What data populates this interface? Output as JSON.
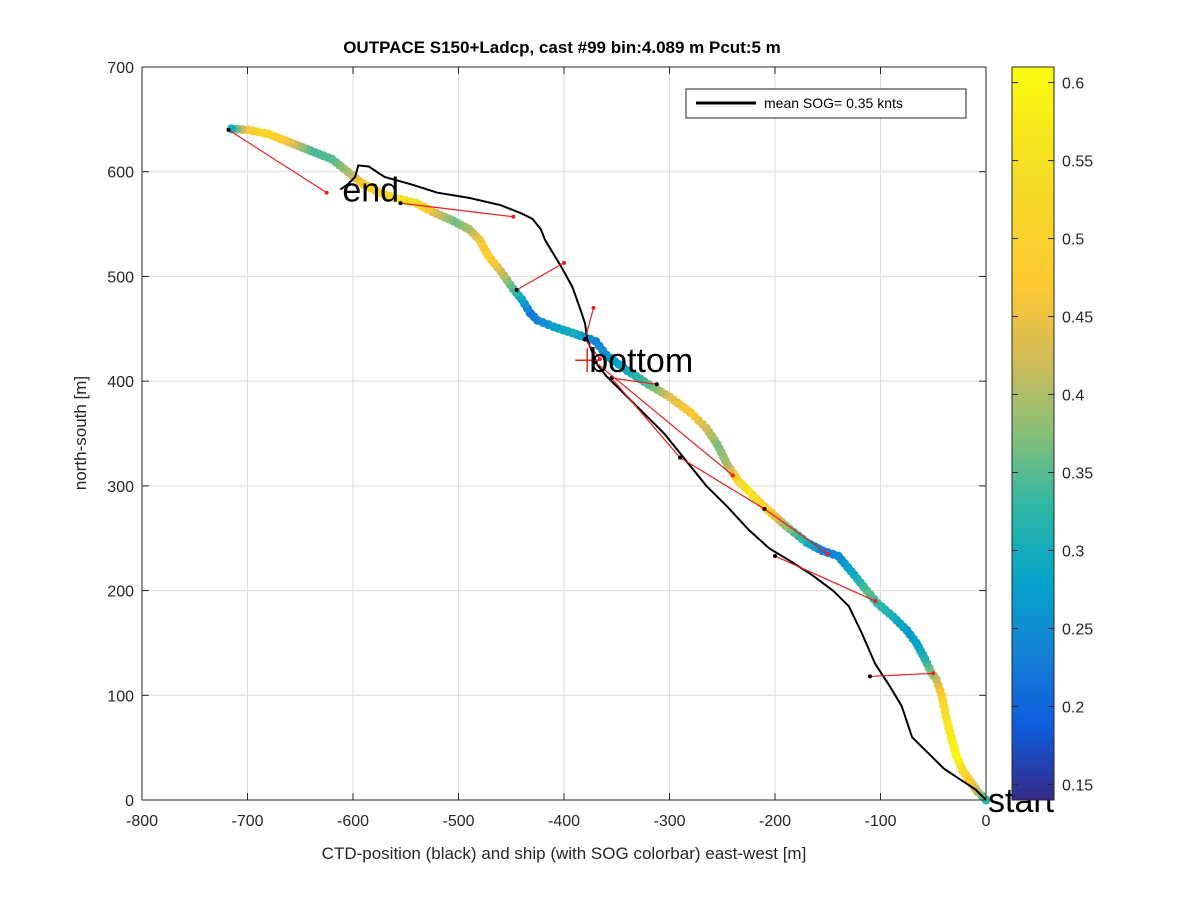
{
  "chart_data": {
    "type": "scatter",
    "title": "OUTPACE S150+Ladcp, cast #99 bin:4.089 m  Pcut:5 m",
    "xlabel": "CTD-position (black) and ship (with SOG colorbar) east-west [m]",
    "ylabel": "north-south [m]",
    "xlim": [
      -800,
      0
    ],
    "ylim": [
      0,
      700
    ],
    "x_ticks": [
      "-800",
      "-700",
      "-600",
      "-500",
      "-400",
      "-300",
      "-200",
      "-100",
      "0"
    ],
    "y_ticks": [
      "0",
      "100",
      "200",
      "300",
      "400",
      "500",
      "600",
      "700"
    ],
    "grid": true,
    "legend": {
      "label": "mean SOG=  0.35 knts",
      "location": "top-right"
    },
    "colorbar": {
      "colormap": "parula",
      "range": [
        0.14,
        0.61
      ],
      "ticks": [
        "0.15",
        "0.2",
        "0.25",
        "0.3",
        "0.35",
        "0.4",
        "0.45",
        "0.5",
        "0.55",
        "0.6"
      ]
    },
    "annotations": [
      {
        "text": "start",
        "x": 0,
        "y": 0
      },
      {
        "text": "bottom",
        "x": -378,
        "y": 420
      },
      {
        "text": "end",
        "x": -612,
        "y": 583
      }
    ],
    "series": [
      {
        "kind": "ship_track",
        "points": [
          [
            0,
            0
          ],
          [
            -8,
            8
          ],
          [
            -15,
            18
          ],
          [
            -22,
            28
          ],
          [
            -28,
            42
          ],
          [
            -33,
            60
          ],
          [
            -38,
            80
          ],
          [
            -42,
            100
          ],
          [
            -47,
            115
          ],
          [
            -52,
            122
          ],
          [
            -58,
            135
          ],
          [
            -66,
            150
          ],
          [
            -75,
            162
          ],
          [
            -88,
            175
          ],
          [
            -103,
            188
          ],
          [
            -113,
            200
          ],
          [
            -125,
            215
          ],
          [
            -140,
            233
          ],
          [
            -155,
            238
          ],
          [
            -170,
            246
          ],
          [
            -190,
            262
          ],
          [
            -210,
            280
          ],
          [
            -225,
            295
          ],
          [
            -235,
            305
          ],
          [
            -245,
            320
          ],
          [
            -255,
            340
          ],
          [
            -265,
            355
          ],
          [
            -280,
            370
          ],
          [
            -300,
            385
          ],
          [
            -320,
            397
          ],
          [
            -340,
            410
          ],
          [
            -360,
            425
          ],
          [
            -370,
            438
          ],
          [
            -380,
            442
          ],
          [
            -392,
            446
          ],
          [
            -410,
            452
          ],
          [
            -425,
            458
          ],
          [
            -432,
            465
          ],
          [
            -440,
            478
          ],
          [
            -448,
            488
          ],
          [
            -460,
            505
          ],
          [
            -472,
            520
          ],
          [
            -480,
            535
          ],
          [
            -490,
            545
          ],
          [
            -505,
            553
          ],
          [
            -525,
            562
          ],
          [
            -540,
            570
          ],
          [
            -560,
            575
          ],
          [
            -575,
            580
          ],
          [
            -590,
            588
          ],
          [
            -605,
            600
          ],
          [
            -620,
            612
          ],
          [
            -640,
            620
          ],
          [
            -660,
            628
          ],
          [
            -680,
            636
          ],
          [
            -700,
            640
          ],
          [
            -715,
            641
          ],
          [
            -722,
            641
          ]
        ],
        "sog": [
          0.32,
          0.4,
          0.46,
          0.52,
          0.6,
          0.58,
          0.55,
          0.5,
          0.42,
          0.38,
          0.32,
          0.28,
          0.27,
          0.3,
          0.33,
          0.35,
          0.3,
          0.25,
          0.22,
          0.3,
          0.38,
          0.5,
          0.56,
          0.52,
          0.4,
          0.37,
          0.42,
          0.47,
          0.44,
          0.35,
          0.3,
          0.26,
          0.24,
          0.25,
          0.3,
          0.28,
          0.24,
          0.22,
          0.28,
          0.34,
          0.42,
          0.5,
          0.46,
          0.4,
          0.36,
          0.44,
          0.54,
          0.55,
          0.52,
          0.48,
          0.4,
          0.35,
          0.34,
          0.44,
          0.52,
          0.48,
          0.3,
          0.2
        ]
      },
      {
        "kind": "ctd_track",
        "points": [
          [
            0,
            0
          ],
          [
            -10,
            10
          ],
          [
            -25,
            20
          ],
          [
            -40,
            30
          ],
          [
            -55,
            45
          ],
          [
            -70,
            60
          ],
          [
            -80,
            90
          ],
          [
            -92,
            110
          ],
          [
            -105,
            130
          ],
          [
            -118,
            160
          ],
          [
            -130,
            185
          ],
          [
            -145,
            200
          ],
          [
            -165,
            215
          ],
          [
            -185,
            228
          ],
          [
            -205,
            240
          ],
          [
            -225,
            258
          ],
          [
            -245,
            280
          ],
          [
            -265,
            300
          ],
          [
            -285,
            325
          ],
          [
            -305,
            350
          ],
          [
            -325,
            370
          ],
          [
            -345,
            390
          ],
          [
            -360,
            405
          ],
          [
            -368,
            415
          ],
          [
            -372,
            425
          ],
          [
            -375,
            432
          ],
          [
            -378,
            440
          ],
          [
            -380,
            455
          ],
          [
            -385,
            470
          ],
          [
            -392,
            490
          ],
          [
            -403,
            510
          ],
          [
            -412,
            525
          ],
          [
            -418,
            535
          ],
          [
            -422,
            545
          ],
          [
            -430,
            555
          ],
          [
            -440,
            560
          ],
          [
            -460,
            568
          ],
          [
            -490,
            575
          ],
          [
            -520,
            580
          ],
          [
            -545,
            588
          ],
          [
            -570,
            595
          ],
          [
            -585,
            605
          ],
          [
            -595,
            606
          ],
          [
            -598,
            595
          ],
          [
            -605,
            588
          ],
          [
            -612,
            583
          ]
        ]
      },
      {
        "kind": "ensemble_connections",
        "segments": [
          [
            [
              -718,
              640
            ],
            [
              -625,
              580
            ]
          ],
          [
            [
              -555,
              570
            ],
            [
              -448,
              557
            ]
          ],
          [
            [
              -445,
              487
            ],
            [
              -400,
              513
            ]
          ],
          [
            [
              -380,
              440
            ],
            [
              -372,
              470
            ]
          ],
          [
            [
              -380,
              440
            ],
            [
              -366,
              421
            ]
          ],
          [
            [
              -312,
              397
            ],
            [
              -355,
              403
            ]
          ],
          [
            [
              -355,
              403
            ],
            [
              -290,
              327
            ]
          ],
          [
            [
              -290,
              327
            ],
            [
              -210,
              278
            ]
          ],
          [
            [
              -210,
              278
            ],
            [
              -150,
              235
            ]
          ],
          [
            [
              -200,
              233
            ],
            [
              -105,
              190
            ]
          ],
          [
            [
              -110,
              118
            ],
            [
              -50,
              121
            ]
          ],
          [
            [
              -370,
              418
            ],
            [
              -240,
              310
            ]
          ]
        ]
      }
    ]
  }
}
